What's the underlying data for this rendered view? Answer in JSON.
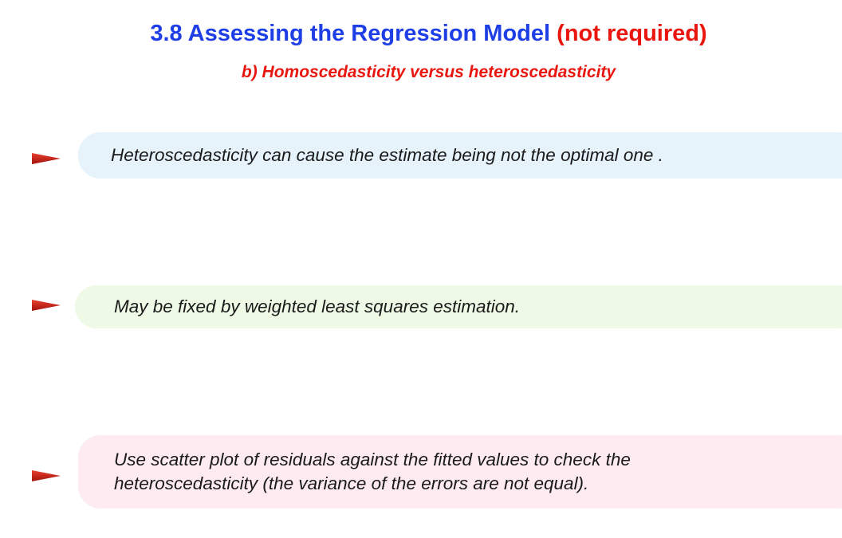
{
  "slide": {
    "title_main": "3.8 Assessing the Regression Model",
    "title_note": "(not required)",
    "subtitle": "b) Homoscedasticity versus heteroscedasticity",
    "bullets": [
      {
        "text": "Heteroscedasticity can cause the estimate being not the optimal one .",
        "bg": "#e6f3fb"
      },
      {
        "text": "May be fixed by weighted least squares estimation.",
        "bg": "#eef9e6"
      },
      {
        "text": "Use scatter plot of residuals against the fitted values to check the\nheteroscedasticity (the variance of the errors are not equal).",
        "bg": "#fdebf1"
      }
    ],
    "colors": {
      "title_blue": "#1f3fe6",
      "accent_red": "#e8160f",
      "arrow_red": "#c81a10"
    },
    "bullet_icon": "triangle-arrow-icon"
  }
}
